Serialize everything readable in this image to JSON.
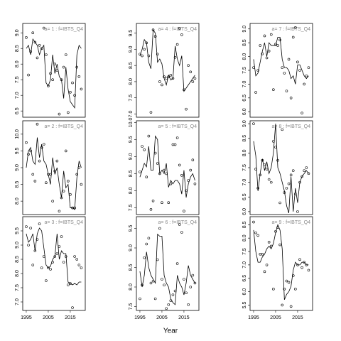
{
  "xlabel": "Year",
  "chart_data": [
    {
      "type": "scatter",
      "title": "a= 1 : f=IBTS_Q4",
      "xlim": [
        1993.4,
        2021.8
      ],
      "x": [
        1995,
        1996,
        1997,
        1998,
        1999,
        2000,
        2001,
        2002,
        2003,
        2004,
        2005,
        2006,
        2007,
        2008,
        2009,
        2010,
        2011,
        2012,
        2013,
        2014,
        2015,
        2016,
        2017,
        2018,
        2019,
        2020
      ],
      "ylim": [
        6.3,
        9.3
      ],
      "yticks": [
        6.5,
        {
          "value": 7,
          "label": "7.0"
        },
        7.5,
        {
          "value": 8,
          "label": "8.0"
        },
        8.5,
        {
          "value": 9,
          "label": "9.0"
        }
      ],
      "series": [
        {
          "style": "points",
          "values": [
            8.85,
            7.65,
            8.4,
            9.0,
            8.7,
            8.2,
            8.6,
            8.5,
            9.15,
            8.3,
            7.3,
            7.7,
            7.5,
            8.0,
            7.8,
            6.4,
            7.5,
            7.9,
            8.3,
            6.45,
            7.1,
            7.4,
            7.0,
            7.9,
            7.6,
            7.2
          ]
        },
        {
          "style": "line",
          "values": [
            8.5,
            8.6,
            8.3,
            8.8,
            8.7,
            8.6,
            8.3,
            8.5,
            8.6,
            7.4,
            7.3,
            7.5,
            8.3,
            7.7,
            8.0,
            7.6,
            7.5,
            6.9,
            7.9,
            7.2,
            6.8,
            6.7,
            6.6,
            8.3,
            8.6,
            8.5
          ]
        }
      ]
    },
    {
      "type": "scatter",
      "title": "a= 2 : f=IBTS_Q4",
      "xlim": [
        1993.4,
        2021.8
      ],
      "x": [
        1995,
        1996,
        1997,
        1998,
        1999,
        2000,
        2001,
        2002,
        2003,
        2004,
        2005,
        2006,
        2007,
        2008,
        2009,
        2010,
        2011,
        2012,
        2013,
        2014,
        2015,
        2016,
        2017,
        2018,
        2019,
        2020
      ],
      "ylim": [
        7.6,
        10.4
      ],
      "yticks": [
        {
          "value": 8,
          "label": "8.0"
        },
        8.5,
        {
          "value": 9,
          "label": "9.0"
        },
        9.5,
        {
          "value": 10,
          "label": "10.0"
        }
      ],
      "series": [
        {
          "style": "points",
          "values": [
            9.75,
            9.4,
            9.5,
            8.8,
            8.6,
            10.3,
            9.2,
            9.6,
            9.7,
            8.55,
            8.8,
            8.8,
            8.0,
            8.9,
            9.2,
            7.7,
            8.1,
            8.3,
            9.5,
            8.6,
            8.2,
            7.8,
            7.8,
            8.8,
            9.0,
            8.5
          ]
        },
        {
          "style": "line",
          "values": [
            9.0,
            9.5,
            9.6,
            9.2,
            9.1,
            9.9,
            9.3,
            9.7,
            9.2,
            9.1,
            8.8,
            8.5,
            9.3,
            8.8,
            9.0,
            8.5,
            8.1,
            8.9,
            8.4,
            8.5,
            7.8,
            7.8,
            7.75,
            8.7,
            9.2,
            9.0
          ]
        }
      ]
    },
    {
      "type": "scatter",
      "title": "a= 3 : f=IBTS_Q4",
      "xlim": [
        1993.4,
        2021.8
      ],
      "xticks": [
        1995,
        2005,
        2015
      ],
      "x": [
        1995,
        1996,
        1997,
        1998,
        1999,
        2000,
        2001,
        2002,
        2003,
        2004,
        2005,
        2006,
        2007,
        2008,
        2009,
        2010,
        2011,
        2012,
        2013,
        2014,
        2015,
        2016,
        2017,
        2018,
        2019,
        2020
      ],
      "ylim": [
        6.7,
        10.0
      ],
      "yticks": [
        {
          "value": 7,
          "label": "7.0"
        },
        7.5,
        {
          "value": 8,
          "label": "8.0"
        },
        8.5,
        {
          "value": 9,
          "label": "9.0"
        },
        9.5
      ],
      "series": [
        {
          "style": "points",
          "values": [
            9.65,
            9.0,
            9.6,
            8.3,
            8.8,
            9.2,
            9.75,
            8.2,
            8.6,
            7.75,
            8.2,
            8.15,
            8.4,
            8.6,
            8.7,
            8.95,
            9.3,
            8.4,
            8.6,
            7.6,
            7.65,
            6.8,
            8.6,
            8.5,
            8.3,
            8.2
          ]
        },
        {
          "style": "line",
          "values": [
            9.4,
            9.1,
            9.2,
            9.4,
            8.8,
            9.4,
            9.6,
            9.5,
            8.9,
            8.3,
            8.2,
            8.25,
            8.5,
            8.6,
            9.4,
            8.5,
            8.8,
            8.7,
            8.7,
            7.7,
            7.65,
            7.6,
            7.65,
            7.6,
            7.7,
            7.7
          ]
        }
      ]
    },
    {
      "type": "scatter",
      "title": "a= 4 : f=IBTS_Q4",
      "xlim": [
        1993.4,
        2021.8
      ],
      "x": [
        1995,
        1996,
        1997,
        1998,
        1999,
        2000,
        2001,
        2002,
        2003,
        2004,
        2005,
        2006,
        2007,
        2008,
        2009,
        2010,
        2011,
        2012,
        2013,
        2014,
        2015,
        2016,
        2017,
        2018,
        2019,
        2020
      ],
      "ylim": [
        6.9,
        9.8
      ],
      "yticks": [
        {
          "value": 7,
          "label": "7.0"
        },
        7.5,
        {
          "value": 8,
          "label": "8.0"
        },
        8.5,
        {
          "value": 9,
          "label": "9.0"
        },
        9.5
      ],
      "series": [
        {
          "style": "points",
          "values": [
            8.85,
            8.8,
            9.0,
            9.2,
            8.8,
            7.05,
            9.6,
            9.4,
            8.85,
            8.0,
            7.9,
            8.15,
            8.1,
            8.15,
            8.2,
            8.1,
            8.75,
            9.15,
            9.65,
            9.45,
            7.75,
            7.15,
            8.5,
            8.3,
            8.0,
            8.1
          ]
        },
        {
          "style": "line",
          "values": [
            8.8,
            9.0,
            9.3,
            9.2,
            8.6,
            8.4,
            9.6,
            9.5,
            8.6,
            8.7,
            8.55,
            8.1,
            7.9,
            8.2,
            8.05,
            8.1,
            9.1,
            8.7,
            8.5,
            8.8,
            7.7,
            7.8,
            7.9,
            8.0,
            8.1,
            8.2
          ]
        }
      ]
    },
    {
      "type": "scatter",
      "title": "a= 5 : f=IBTS_Q4",
      "xlim": [
        1993.4,
        2021.8
      ],
      "x": [
        1995,
        1996,
        1997,
        1998,
        1999,
        2000,
        2001,
        2002,
        2003,
        2004,
        2005,
        2006,
        2007,
        2008,
        2009,
        2010,
        2011,
        2012,
        2013,
        2014,
        2015,
        2016,
        2017,
        2018,
        2019,
        2020
      ],
      "ylim": [
        7.3,
        10.05
      ],
      "yticks": [
        7.5,
        {
          "value": 8,
          "label": "8.0"
        },
        8.5,
        {
          "value": 9,
          "label": "9.0"
        },
        9.5,
        {
          "value": 10,
          "label": "10.0"
        }
      ],
      "series": [
        {
          "style": "points",
          "values": [
            8.55,
            9.3,
            9.2,
            8.4,
            9.6,
            7.45,
            7.7,
            9.1,
            8.8,
            8.5,
            7.65,
            8.6,
            8.5,
            7.65,
            8.2,
            9.35,
            9.35,
            9.55,
            8.75,
            8.45,
            7.4,
            8.0,
            8.3,
            8.6,
            8.9,
            8.2
          ]
        },
        {
          "style": "line",
          "values": [
            8.4,
            8.6,
            8.8,
            8.7,
            9.3,
            8.6,
            8.6,
            9.6,
            9.5,
            8.5,
            8.6,
            8.5,
            8.8,
            8.1,
            8.3,
            8.2,
            8.3,
            8.3,
            8.2,
            7.9,
            8.6,
            7.8,
            8.2,
            8.4,
            8.5,
            8.3
          ]
        }
      ]
    },
    {
      "type": "scatter",
      "title": "a= 6 : f=IBTS_Q4",
      "xlim": [
        1993.4,
        2021.8
      ],
      "xticks": [
        1995,
        2005,
        2015
      ],
      "x": [
        1995,
        1996,
        1997,
        1998,
        1999,
        2000,
        2001,
        2002,
        2003,
        2004,
        2005,
        2006,
        2007,
        2008,
        2009,
        2010,
        2011,
        2012,
        2013,
        2014,
        2015,
        2016,
        2017,
        2018,
        2019,
        2020
      ],
      "ylim": [
        7.4,
        9.8
      ],
      "yticks": [
        7.5,
        {
          "value": 8,
          "label": "8.0"
        },
        8.5,
        {
          "value": 9,
          "label": "9.0"
        },
        9.5
      ],
      "series": [
        {
          "style": "points",
          "values": [
            7.7,
            8.05,
            8.75,
            9.1,
            9.25,
            8.1,
            8.15,
            7.7,
            8.7,
            9.5,
            8.2,
            8.05,
            7.45,
            7.55,
            7.65,
            7.8,
            7.9,
            8.6,
            9.6,
            9.4,
            8.2,
            7.85,
            7.55,
            8.0,
            8.3,
            8.1
          ]
        },
        {
          "style": "line",
          "values": [
            8.4,
            8.0,
            8.3,
            8.9,
            8.5,
            8.3,
            8.2,
            8.1,
            9.35,
            9.3,
            9.3,
            8.3,
            8.1,
            8.0,
            7.7,
            7.6,
            7.55,
            8.3,
            8.1,
            8.0,
            7.8,
            8.1,
            8.55,
            8.3,
            8.2,
            8.1
          ]
        }
      ]
    },
    {
      "type": "scatter",
      "title": "a= 7 : f=IBTS_Q4",
      "xlim": [
        1993.4,
        2021.8
      ],
      "x": [
        1995,
        1996,
        1997,
        1998,
        1999,
        2000,
        2001,
        2002,
        2003,
        2004,
        2005,
        2006,
        2007,
        2008,
        2009,
        2010,
        2011,
        2012,
        2013,
        2014,
        2015,
        2016,
        2017,
        2018,
        2019,
        2020
      ],
      "ylim": [
        5.8,
        9.2
      ],
      "yticks": [
        {
          "value": 6,
          "label": "6.0"
        },
        6.5,
        {
          "value": 7,
          "label": "7.0"
        },
        7.5,
        {
          "value": 8,
          "label": "8.0"
        },
        8.5,
        {
          "value": 9,
          "label": "9.0"
        }
      ],
      "series": [
        {
          "style": "points",
          "values": [
            7.6,
            6.7,
            7.5,
            8.4,
            8.1,
            8.75,
            7.95,
            8.2,
            8.8,
            6.8,
            8.45,
            8.4,
            8.6,
            7.6,
            7.4,
            6.75,
            7.9,
            6.5,
            8.7,
            9.05,
            7.8,
            7.5,
            5.95,
            7.0,
            7.3,
            7.6
          ]
        },
        {
          "style": "line",
          "values": [
            7.9,
            7.3,
            7.4,
            7.8,
            8.2,
            8.5,
            8.0,
            8.5,
            8.4,
            8.4,
            8.4,
            8.7,
            8.7,
            7.9,
            7.6,
            7.6,
            7.5,
            7.2,
            7.3,
            7.0,
            7.7,
            7.7,
            7.5,
            7.3,
            7.2,
            7.3
          ]
        }
      ]
    },
    {
      "type": "scatter",
      "title": "a= 8 : f=IBTS_Q4",
      "xlim": [
        1993.4,
        2021.8
      ],
      "x": [
        1995,
        1996,
        1997,
        1998,
        1999,
        2000,
        2001,
        2002,
        2003,
        2004,
        2005,
        2006,
        2007,
        2008,
        2009,
        2010,
        2011,
        2012,
        2013,
        2014,
        2015,
        2016,
        2017,
        2018,
        2019,
        2020
      ],
      "ylim": [
        5.9,
        9.1
      ],
      "yticks": [
        {
          "value": 6,
          "label": "6.0"
        },
        6.5,
        {
          "value": 7,
          "label": "7.0"
        },
        7.5,
        {
          "value": 8,
          "label": "8.0"
        },
        8.5,
        {
          "value": 9,
          "label": "9.0"
        }
      ],
      "series": [
        {
          "style": "points",
          "values": [
            9.0,
            7.45,
            6.8,
            7.25,
            7.75,
            7.6,
            7.45,
            7.1,
            7.0,
            8.4,
            8.2,
            7.75,
            6.3,
            8.8,
            6.65,
            6.8,
            6.95,
            7.25,
            7.4,
            6.6,
            6.0,
            7.0,
            7.2,
            7.4,
            7.5,
            7.3
          ]
        },
        {
          "style": "line",
          "values": [
            8.4,
            7.9,
            6.7,
            7.3,
            7.8,
            7.4,
            7.7,
            7.3,
            7.5,
            8.0,
            9.0,
            7.5,
            7.3,
            7.0,
            6.7,
            6.2,
            5.95,
            7.2,
            6.0,
            6.8,
            6.3,
            7.0,
            7.2,
            7.3,
            7.4,
            7.3
          ]
        }
      ]
    },
    {
      "type": "scatter",
      "title": "a= 9 : f=IBTS_Q4",
      "xlim": [
        1993.4,
        2021.8
      ],
      "xticks": [
        1995,
        2005,
        2015
      ],
      "x": [
        1995,
        1996,
        1997,
        1998,
        1999,
        2000,
        2001,
        2002,
        2003,
        2004,
        2005,
        2006,
        2007,
        2008,
        2009,
        2010,
        2011,
        2012,
        2013,
        2014,
        2015,
        2016,
        2017,
        2018,
        2019,
        2020
      ],
      "ylim": [
        5.3,
        8.8
      ],
      "yticks": [
        5.5,
        {
          "value": 6,
          "label": "6.0"
        },
        6.5,
        {
          "value": 7,
          "label": "7.0"
        },
        7.5,
        {
          "value": 8,
          "label": "8.0"
        },
        8.5
      ],
      "series": [
        {
          "style": "points",
          "values": [
            8.6,
            8.2,
            8.1,
            7.4,
            7.4,
            6.75,
            7.0,
            7.85,
            7.7,
            6.1,
            8.25,
            8.4,
            7.75,
            5.5,
            6.1,
            6.4,
            6.35,
            5.45,
            6.6,
            6.1,
            7.0,
            7.2,
            6.9,
            7.1,
            7.0,
            6.8
          ]
        },
        {
          "style": "line",
          "values": [
            8.3,
            7.5,
            7.1,
            7.1,
            7.3,
            7.4,
            7.6,
            7.7,
            7.6,
            7.8,
            8.2,
            8.5,
            8.3,
            7.6,
            5.7,
            5.9,
            6.0,
            6.2,
            6.8,
            7.1,
            7.0,
            7.0,
            7.1,
            7.1,
            7.0,
            7.0
          ]
        }
      ]
    }
  ]
}
